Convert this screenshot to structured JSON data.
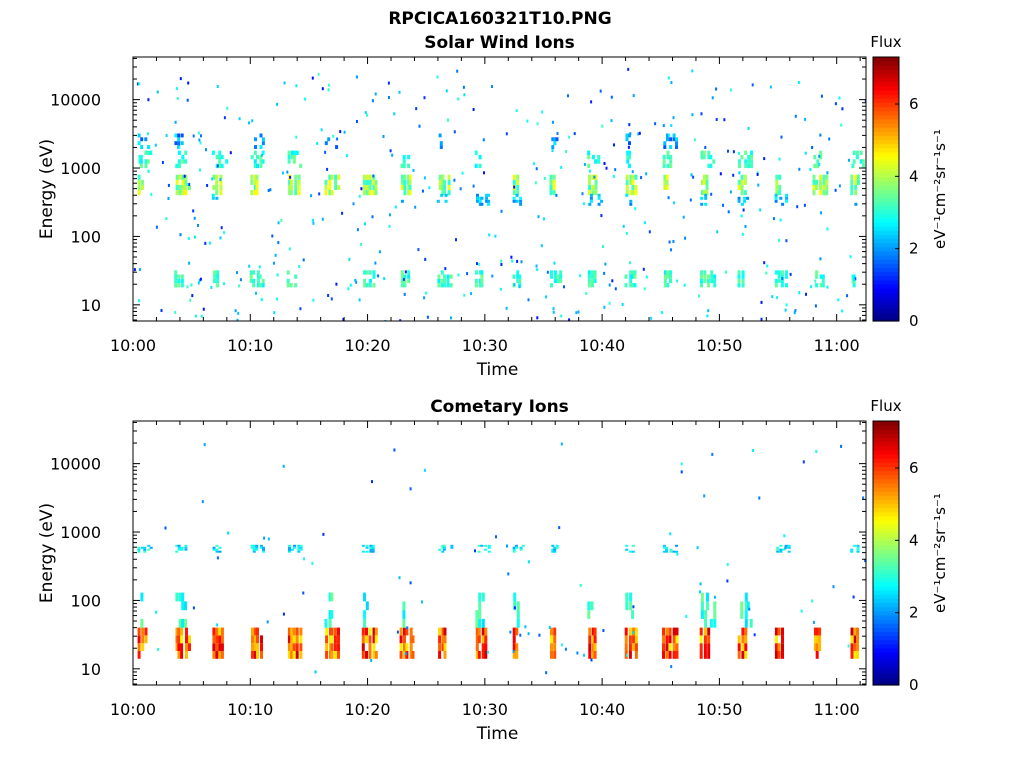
{
  "figure": {
    "suptitle": "RPCICA160321T10.PNG"
  },
  "chart_data": [
    {
      "type": "heatmap",
      "title": "Solar Wind Ions",
      "xlabel": "Time",
      "ylabel": "Energy (eV)",
      "x_tick_labels": [
        "10:00",
        "10:10",
        "10:20",
        "10:30",
        "10:40",
        "10:50",
        "11:00"
      ],
      "x_tick_minutes": [
        0,
        10,
        20,
        30,
        40,
        50,
        60
      ],
      "xlim_minutes": [
        0,
        62.5
      ],
      "y_scale": "log",
      "y_tick_labels": [
        "10",
        "100",
        "1000",
        "10000"
      ],
      "y_tick_values": [
        10,
        100,
        1000,
        10000
      ],
      "ylim": [
        5.8,
        42000
      ],
      "colorbar": {
        "title": "Flux",
        "label": "eV⁻¹cm⁻²sr⁻¹s⁻¹",
        "ticks": [
          "0",
          "2",
          "4",
          "6"
        ],
        "range": [
          0,
          7.3
        ]
      },
      "sweep_period_minutes": 3.2,
      "sweep_offset_minutes": 0.3,
      "bands": [
        {
          "energy_min": 400,
          "energy_max": 800,
          "level_min": 3.0,
          "level_max": 4.6,
          "probability": 0.85
        },
        {
          "energy_min": 1000,
          "energy_max": 1800,
          "level_min": 2.6,
          "level_max": 3.6,
          "probability": 0.55
        },
        {
          "energy_min": 1900,
          "energy_max": 3200,
          "level_min": 1.4,
          "level_max": 2.8,
          "probability": 0.4
        },
        {
          "energy_min": 280,
          "energy_max": 420,
          "level_min": 1.8,
          "level_max": 2.8,
          "probability": 0.35
        },
        {
          "energy_min": 18,
          "energy_max": 32,
          "level_min": 2.6,
          "level_max": 3.6,
          "probability": 0.75
        }
      ],
      "sparse": {
        "energy_min": 6,
        "energy_max": 30000,
        "level_min": 1.0,
        "level_max": 3.2,
        "count": 420
      }
    },
    {
      "type": "heatmap",
      "title": "Cometary Ions",
      "xlabel": "Time",
      "ylabel": "Energy (eV)",
      "x_tick_labels": [
        "10:00",
        "10:10",
        "10:20",
        "10:30",
        "10:40",
        "10:50",
        "11:00"
      ],
      "x_tick_minutes": [
        0,
        10,
        20,
        30,
        40,
        50,
        60
      ],
      "xlim_minutes": [
        0,
        62.5
      ],
      "y_scale": "log",
      "y_tick_labels": [
        "10",
        "100",
        "1000",
        "10000"
      ],
      "y_tick_values": [
        10,
        100,
        1000,
        10000
      ],
      "ylim": [
        5.8,
        42000
      ],
      "colorbar": {
        "title": "Flux",
        "label": "eV⁻¹cm⁻²sr⁻¹s⁻¹",
        "ticks": [
          "0",
          "2",
          "4",
          "6"
        ],
        "range": [
          0,
          7.3
        ]
      },
      "sweep_period_minutes": 3.2,
      "sweep_offset_minutes": 0.3,
      "bands": [
        {
          "energy_min": 14,
          "energy_max": 40,
          "level_min": 4.6,
          "level_max": 6.8,
          "probability": 0.95
        },
        {
          "energy_min": 40,
          "energy_max": 130,
          "level_min": 2.4,
          "level_max": 3.6,
          "probability": 0.45
        },
        {
          "energy_min": 500,
          "energy_max": 650,
          "level_min": 2.0,
          "level_max": 3.2,
          "probability": 0.6
        }
      ],
      "sparse": {
        "energy_min": 6,
        "energy_max": 25000,
        "level_min": 1.2,
        "level_max": 3.0,
        "count": 90
      }
    }
  ]
}
